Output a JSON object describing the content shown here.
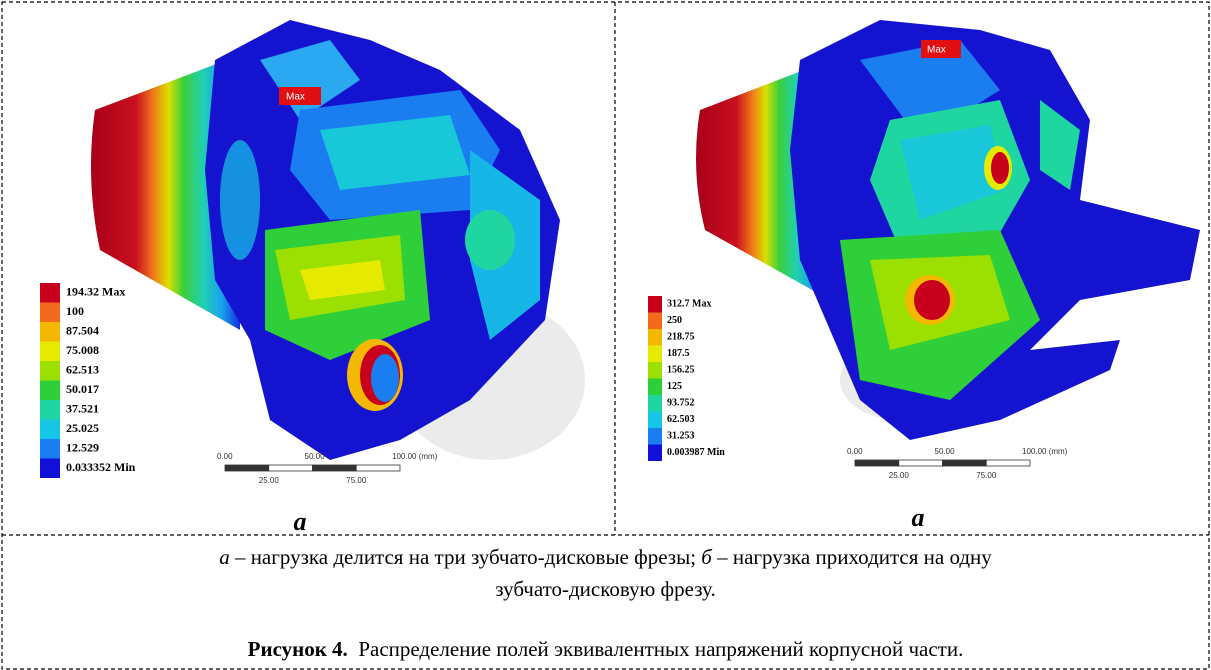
{
  "figure": {
    "panels": [
      {
        "label": "a",
        "max_marker": "Max",
        "legend": [
          {
            "label": "194.32 Max",
            "color": "#c8001e"
          },
          {
            "label": "100",
            "color": "#f26b1d"
          },
          {
            "label": "87.504",
            "color": "#f5b800"
          },
          {
            "label": "75.008",
            "color": "#e5ea00"
          },
          {
            "label": "62.513",
            "color": "#9be000"
          },
          {
            "label": "50.017",
            "color": "#2fcf3a"
          },
          {
            "label": "37.521",
            "color": "#1fd6a0"
          },
          {
            "label": "25.025",
            "color": "#16c6e6"
          },
          {
            "label": "12.529",
            "color": "#1a7ef0"
          },
          {
            "label": "0.033352 Min",
            "color": "#1010d8"
          }
        ],
        "scale_top": [
          "0.00",
          "50.00",
          "100.00 (mm)"
        ],
        "scale_bottom": [
          "25.00",
          "75.00"
        ]
      },
      {
        "label": "a",
        "max_marker": "Max",
        "legend": [
          {
            "label": "312.7 Max",
            "color": "#c8001e"
          },
          {
            "label": "250",
            "color": "#f26b1d"
          },
          {
            "label": "218.75",
            "color": "#f5b800"
          },
          {
            "label": "187.5",
            "color": "#e5ea00"
          },
          {
            "label": "156.25",
            "color": "#9be000"
          },
          {
            "label": "125",
            "color": "#2fcf3a"
          },
          {
            "label": "93.752",
            "color": "#1fd6a0"
          },
          {
            "label": "62.503",
            "color": "#16c6e6"
          },
          {
            "label": "31.253",
            "color": "#1a7ef0"
          },
          {
            "label": "0.003987 Min",
            "color": "#1010d8"
          }
        ],
        "scale_top": [
          "0.00",
          "50.00",
          "100.00 (mm)"
        ],
        "scale_bottom": [
          "25.00",
          "75.00"
        ]
      }
    ],
    "caption": {
      "line1": [
        "а",
        " – нагрузка делится на три зубчато-дисковые фрезы; ",
        "б",
        " – нагрузка приходится на одну"
      ],
      "line2": "зубчато-дисковую фрезу."
    },
    "title": {
      "number": "Рисунок 4.",
      "text": "Распределение полей эквивалентных напряжений корпусной части."
    }
  }
}
